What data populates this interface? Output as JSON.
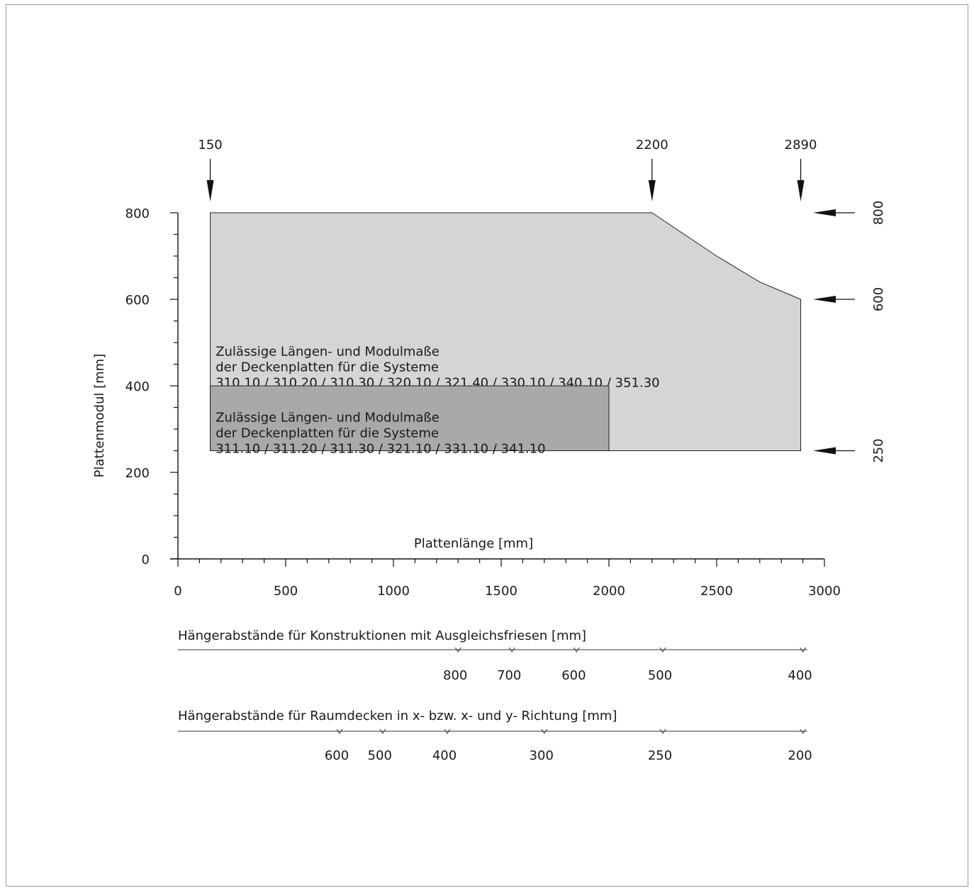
{
  "chart_data": {
    "type": "area",
    "xlabel": "Plattenlänge [mm]",
    "ylabel": "Plattenmodul [mm]",
    "xlim": [
      0,
      3000
    ],
    "ylim": [
      0,
      800
    ],
    "x_ticks": [
      "0",
      "500",
      "1000",
      "1500",
      "2000",
      "2500",
      "3000"
    ],
    "y_ticks": [
      "0",
      "200",
      "400",
      "600",
      "800"
    ],
    "regions": [
      {
        "name": "Systeme 310.10 … 351.30",
        "fill": "#d4d5d7",
        "points": [
          [
            150,
            250
          ],
          [
            150,
            800
          ],
          [
            2200,
            800
          ],
          [
            2500,
            700
          ],
          [
            2700,
            640
          ],
          [
            2890,
            600
          ],
          [
            2890,
            250
          ]
        ],
        "label_lines": [
          "Zulässige Längen- und Modulmaße",
          "der Deckenplatten für die Systeme",
          "310.10 / 310.20 / 310.30 / 320.10 / 321.40 / 330.10 / 340.10 / 351.30"
        ]
      },
      {
        "name": "Systeme 311.10 … 341.10",
        "fill": "#a8a9ab",
        "points": [
          [
            150,
            250
          ],
          [
            150,
            400
          ],
          [
            2000,
            400
          ],
          [
            2000,
            250
          ]
        ],
        "label_lines": [
          "Zulässige Längen- und Modulmaße",
          "der Deckenplatten für die Systeme",
          "311.10 / 311.20 / 311.30 / 321.10 / 331.10 / 341.10"
        ]
      }
    ],
    "top_markers": [
      {
        "x": 150,
        "label": "150"
      },
      {
        "x": 2200,
        "label": "2200"
      },
      {
        "x": 2890,
        "label": "2890"
      }
    ],
    "right_markers": [
      {
        "y": 800,
        "label": "800"
      },
      {
        "y": 600,
        "label": "600"
      },
      {
        "y": 250,
        "label": "250"
      }
    ],
    "secondary_scales": [
      {
        "title": "Hängerabstände für Konstruktionen mit Ausgleichsfriesen [mm]",
        "ticks": [
          {
            "x": 1300,
            "label": "800"
          },
          {
            "x": 1550,
            "label": "700"
          },
          {
            "x": 1850,
            "label": "600"
          },
          {
            "x": 2250,
            "label": "500"
          },
          {
            "x": 2900,
            "label": "400"
          }
        ]
      },
      {
        "title": "Hängerabstände für Raumdecken in x- bzw. x- und y- Richtung [mm]",
        "ticks": [
          {
            "x": 750,
            "label": "600"
          },
          {
            "x": 950,
            "label": "500"
          },
          {
            "x": 1250,
            "label": "400"
          },
          {
            "x": 1700,
            "label": "300"
          },
          {
            "x": 2250,
            "label": "250"
          },
          {
            "x": 2900,
            "label": "200"
          }
        ]
      }
    ]
  }
}
